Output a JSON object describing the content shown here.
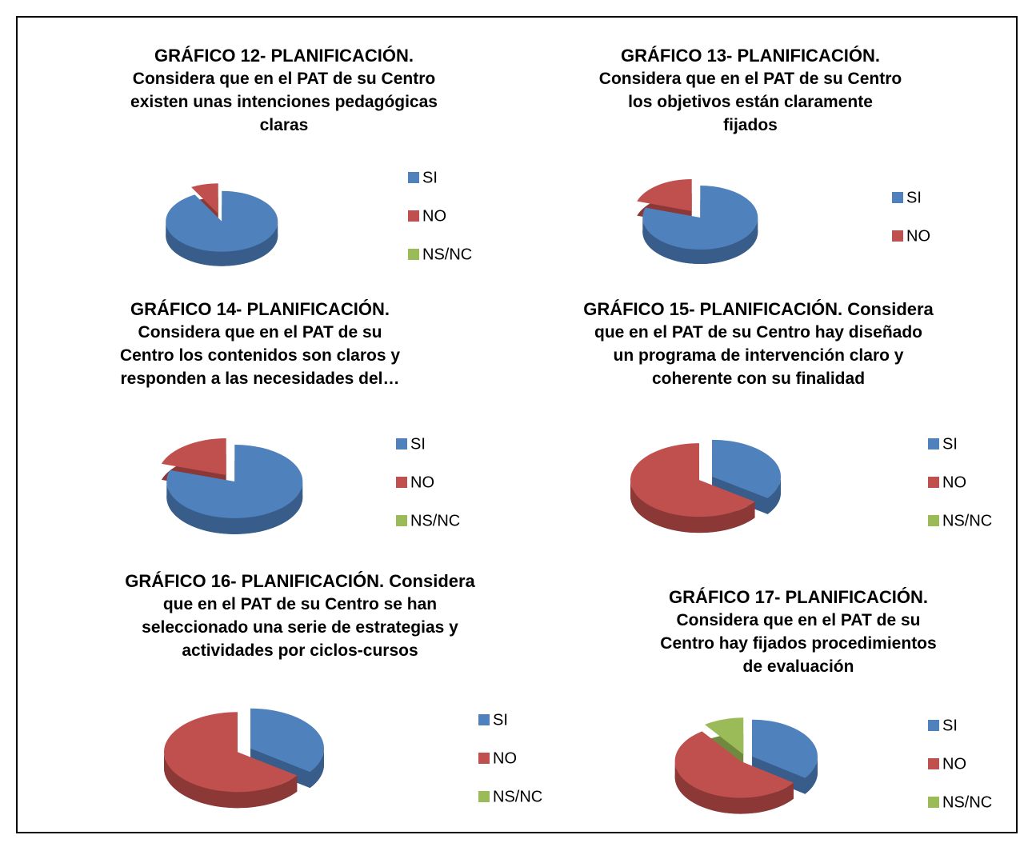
{
  "chart_data": [
    {
      "type": "pie",
      "title": [
        "GRÁFICO 12- PLANIFICACIÓN.",
        "Considera que en el PAT de su Centro",
        "existen unas intenciones pedagógicas",
        "claras"
      ],
      "categories": [
        "SI",
        "NO",
        "NS/NC"
      ],
      "values": [
        92,
        8,
        0
      ],
      "colors": [
        "#4f81bd",
        "#c0504d",
        "#9bbb59"
      ]
    },
    {
      "type": "pie",
      "title": [
        "GRÁFICO 13- PLANIFICACIÓN.",
        "Considera que en el PAT de su Centro",
        "los objetivos están claramente",
        "fijados"
      ],
      "categories": [
        "SI",
        "NO"
      ],
      "values": [
        80,
        20
      ],
      "colors": [
        "#4f81bd",
        "#c0504d"
      ]
    },
    {
      "type": "pie",
      "title": [
        "GRÁFICO 14- PLANIFICACIÓN.",
        "Considera que en el PAT de su",
        "Centro los contenidos son claros y",
        "responden a las necesidades del…"
      ],
      "categories": [
        "SI",
        "NO",
        "NS/NC"
      ],
      "values": [
        80,
        20,
        0
      ],
      "colors": [
        "#4f81bd",
        "#c0504d",
        "#9bbb59"
      ]
    },
    {
      "type": "pie",
      "title": [
        "GRÁFICO 15- PLANIFICACIÓN. Considera",
        "que en el PAT de su Centro hay diseñado",
        "un programa de intervención claro y",
        "coherente con su finalidad"
      ],
      "categories": [
        "SI",
        "NO",
        "NS/NC"
      ],
      "values": [
        35,
        65,
        0
      ],
      "colors": [
        "#4f81bd",
        "#c0504d",
        "#9bbb59"
      ]
    },
    {
      "type": "pie",
      "title": [
        "GRÁFICO 16- PLANIFICACIÓN. Considera",
        "que en el PAT de su Centro se han",
        "seleccionado una serie de estrategias y",
        "actividades por ciclos-cursos"
      ],
      "categories": [
        "SI",
        "NO",
        "NS/NC"
      ],
      "values": [
        35,
        65,
        0
      ],
      "colors": [
        "#4f81bd",
        "#c0504d",
        "#9bbb59"
      ]
    },
    {
      "type": "pie",
      "title": [
        "GRÁFICO 17- PLANIFICACIÓN.",
        "Considera que en el PAT de su",
        "Centro hay fijados procedimientos",
        "de evaluación"
      ],
      "categories": [
        "SI",
        "NO",
        "NS/NC"
      ],
      "values": [
        35,
        55,
        10
      ],
      "colors": [
        "#4f81bd",
        "#c0504d",
        "#9bbb59"
      ]
    }
  ]
}
